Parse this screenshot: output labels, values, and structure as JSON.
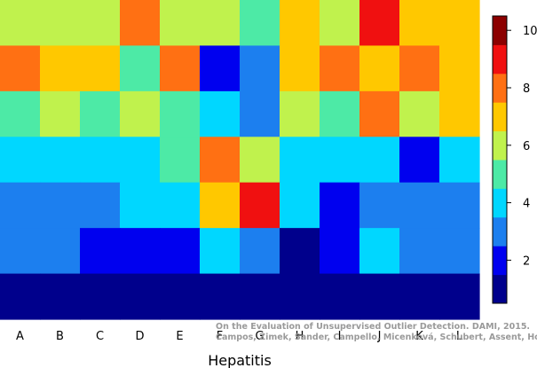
{
  "chart_data": {
    "type": "heatmap",
    "title": "",
    "xlabel": "Hepatitis",
    "ylabel": "",
    "categories": [
      "A",
      "B",
      "C",
      "D",
      "E",
      "F",
      "G",
      "H",
      "I",
      "J",
      "K",
      "L"
    ],
    "rows_top_to_bottom": [
      [
        6,
        6,
        6,
        8,
        6,
        6,
        5,
        7,
        6,
        9,
        7,
        7
      ],
      [
        8,
        7,
        7,
        5,
        8,
        2,
        3,
        7,
        8,
        7,
        8,
        7
      ],
      [
        5,
        6,
        5,
        6,
        5,
        4,
        3,
        6,
        5,
        8,
        6,
        7
      ],
      [
        4,
        4,
        4,
        4,
        5,
        8,
        6,
        4,
        4,
        4,
        2,
        4
      ],
      [
        3,
        3,
        3,
        4,
        4,
        7,
        9,
        4,
        2,
        3,
        3,
        3
      ],
      [
        3,
        3,
        2,
        2,
        2,
        4,
        3,
        1,
        2,
        4,
        3,
        3
      ],
      [
        1,
        1,
        1,
        1,
        1,
        1,
        1,
        1,
        1,
        1,
        1,
        1
      ]
    ],
    "color_scale": {
      "min": 0.5,
      "max": 10.5,
      "ticks": [
        "2",
        "4",
        "6",
        "8",
        "10"
      ],
      "tick_values": [
        2,
        4,
        6,
        8,
        10
      ],
      "colors": [
        "#00008c",
        "#0000ef",
        "#1c7fef",
        "#00d7ff",
        "#4deaa6",
        "#c0f24d",
        "#ffc800",
        "#ff7013",
        "#f01010",
        "#8c0000"
      ]
    },
    "grid": false,
    "legend": "right"
  },
  "watermark": {
    "line1": "On the Evaluation of Unsupervised Outlier Detection. DAMI, 2015.",
    "line2": "Campos, Zimek, Sander, Campello, Micenková, Schubert, Assent, Houle"
  }
}
